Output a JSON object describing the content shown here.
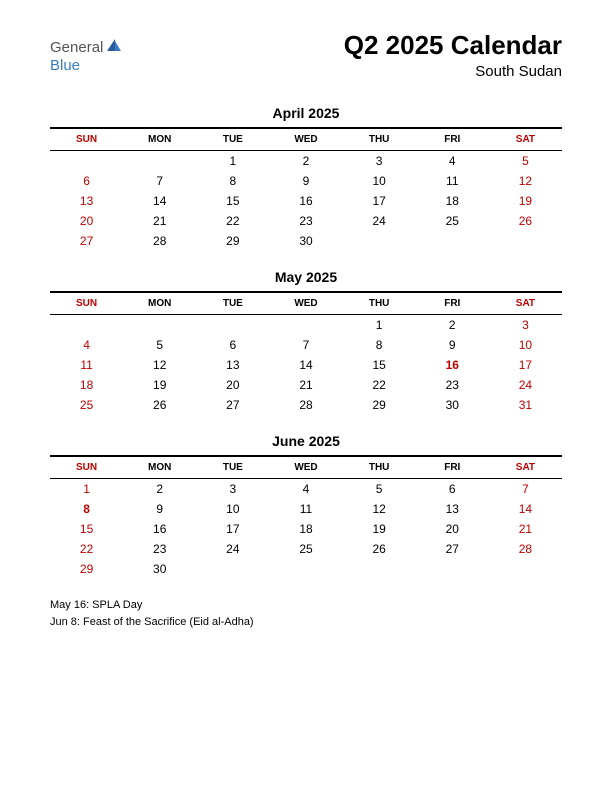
{
  "logo": {
    "text1": "General",
    "text2": "Blue",
    "color1": "#555555",
    "color2": "#3a7bc4"
  },
  "header": {
    "title": "Q2 2025 Calendar",
    "subtitle": "South Sudan"
  },
  "dayLabels": [
    "SUN",
    "MON",
    "TUE",
    "WED",
    "THU",
    "FRI",
    "SAT"
  ],
  "months": [
    {
      "title": "April 2025",
      "weeks": [
        [
          null,
          null,
          {
            "d": 1
          },
          {
            "d": 2
          },
          {
            "d": 3
          },
          {
            "d": 4
          },
          {
            "d": 5,
            "w": true
          }
        ],
        [
          {
            "d": 6,
            "w": true
          },
          {
            "d": 7
          },
          {
            "d": 8
          },
          {
            "d": 9
          },
          {
            "d": 10
          },
          {
            "d": 11
          },
          {
            "d": 12,
            "w": true
          }
        ],
        [
          {
            "d": 13,
            "w": true
          },
          {
            "d": 14
          },
          {
            "d": 15
          },
          {
            "d": 16
          },
          {
            "d": 17
          },
          {
            "d": 18
          },
          {
            "d": 19,
            "w": true
          }
        ],
        [
          {
            "d": 20,
            "w": true
          },
          {
            "d": 21
          },
          {
            "d": 22
          },
          {
            "d": 23
          },
          {
            "d": 24
          },
          {
            "d": 25
          },
          {
            "d": 26,
            "w": true
          }
        ],
        [
          {
            "d": 27,
            "w": true
          },
          {
            "d": 28
          },
          {
            "d": 29
          },
          {
            "d": 30
          },
          null,
          null,
          null
        ]
      ]
    },
    {
      "title": "May 2025",
      "weeks": [
        [
          null,
          null,
          null,
          null,
          {
            "d": 1
          },
          {
            "d": 2
          },
          {
            "d": 3,
            "w": true
          }
        ],
        [
          {
            "d": 4,
            "w": true
          },
          {
            "d": 5
          },
          {
            "d": 6
          },
          {
            "d": 7
          },
          {
            "d": 8
          },
          {
            "d": 9
          },
          {
            "d": 10,
            "w": true
          }
        ],
        [
          {
            "d": 11,
            "w": true
          },
          {
            "d": 12
          },
          {
            "d": 13
          },
          {
            "d": 14
          },
          {
            "d": 15
          },
          {
            "d": 16,
            "h": true
          },
          {
            "d": 17,
            "w": true
          }
        ],
        [
          {
            "d": 18,
            "w": true
          },
          {
            "d": 19
          },
          {
            "d": 20
          },
          {
            "d": 21
          },
          {
            "d": 22
          },
          {
            "d": 23
          },
          {
            "d": 24,
            "w": true
          }
        ],
        [
          {
            "d": 25,
            "w": true
          },
          {
            "d": 26
          },
          {
            "d": 27
          },
          {
            "d": 28
          },
          {
            "d": 29
          },
          {
            "d": 30
          },
          {
            "d": 31,
            "w": true
          }
        ]
      ]
    },
    {
      "title": "June 2025",
      "weeks": [
        [
          {
            "d": 1,
            "w": true
          },
          {
            "d": 2
          },
          {
            "d": 3
          },
          {
            "d": 4
          },
          {
            "d": 5
          },
          {
            "d": 6
          },
          {
            "d": 7,
            "w": true
          }
        ],
        [
          {
            "d": 8,
            "h": true
          },
          {
            "d": 9
          },
          {
            "d": 10
          },
          {
            "d": 11
          },
          {
            "d": 12
          },
          {
            "d": 13
          },
          {
            "d": 14,
            "w": true
          }
        ],
        [
          {
            "d": 15,
            "w": true
          },
          {
            "d": 16
          },
          {
            "d": 17
          },
          {
            "d": 18
          },
          {
            "d": 19
          },
          {
            "d": 20
          },
          {
            "d": 21,
            "w": true
          }
        ],
        [
          {
            "d": 22,
            "w": true
          },
          {
            "d": 23
          },
          {
            "d": 24
          },
          {
            "d": 25
          },
          {
            "d": 26
          },
          {
            "d": 27
          },
          {
            "d": 28,
            "w": true
          }
        ],
        [
          {
            "d": 29,
            "w": true
          },
          {
            "d": 30
          },
          null,
          null,
          null,
          null,
          null
        ]
      ]
    }
  ],
  "holidays": [
    "May 16: SPLA Day",
    "Jun 8: Feast of the Sacrifice (Eid al-Adha)"
  ],
  "colors": {
    "text": "#000000",
    "weekend": "#c00000",
    "background": "#ffffff"
  }
}
